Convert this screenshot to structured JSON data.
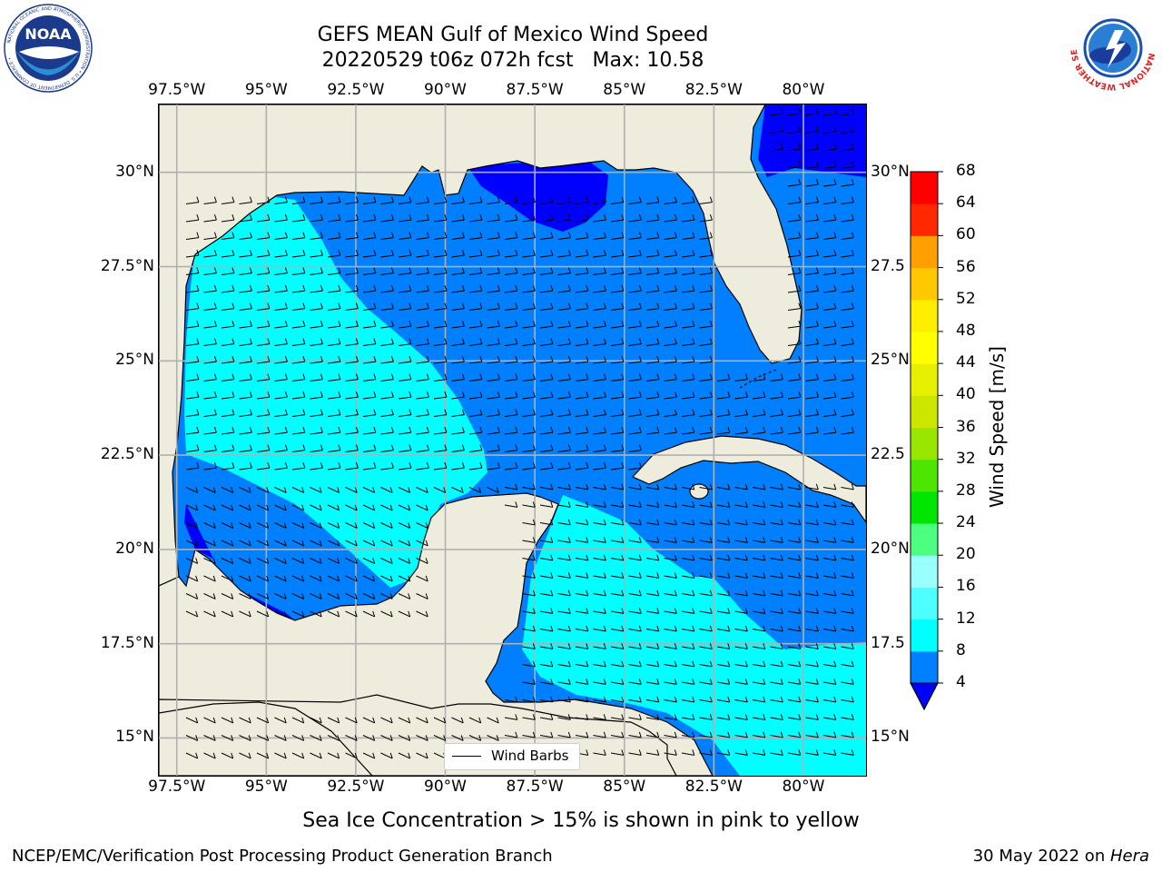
{
  "title": {
    "line1": "GEFS MEAN Gulf of Mexico Wind Speed",
    "line2": "20220529 t06z 072h fcst   Max: 10.58"
  },
  "map": {
    "extent": {
      "lon_min": -98.0,
      "lon_max": -78.25,
      "lat_min": 14.0,
      "lat_max": 31.8
    },
    "lon_ticks": [
      "97.5°W",
      "95°W",
      "92.5°W",
      "90°W",
      "87.5°W",
      "85°W",
      "82.5°W",
      "80°W"
    ],
    "lat_ticks_left": [
      "30°N",
      "27.5°N",
      "25°N",
      "22.5°N",
      "20°N",
      "17.5°N",
      "15°N"
    ],
    "lat_ticks_right": [
      "30°N",
      "27.5",
      "25°N",
      "22.5",
      "20°N",
      "17.5",
      "15°N"
    ],
    "grid": true,
    "land_color": "#eeecdc",
    "legend_label": "Wind Barbs"
  },
  "colorbar": {
    "label": "Wind Speed [m/s]",
    "ticks": [
      "68",
      "64",
      "60",
      "56",
      "52",
      "48",
      "44",
      "40",
      "36",
      "32",
      "28",
      "24",
      "20",
      "16",
      "12",
      "8",
      "4"
    ],
    "colors_low_to_high": [
      "#0080ff",
      "#00ffff",
      "#4dffff",
      "#99ffff",
      "#4cff80",
      "#00e600",
      "#4ce600",
      "#99e600",
      "#cce600",
      "#e6f000",
      "#ffff00",
      "#ffee00",
      "#ffc800",
      "#ffa000",
      "#ff8000",
      "#ff5000",
      "#ff2800",
      "#ff0000"
    ],
    "under_color": "#0000ff"
  },
  "chart_data": {
    "type": "heatmap",
    "title": "GEFS MEAN Gulf of Mexico Wind Speed",
    "subtitle": "20220529 t06z 072h fcst   Max: 10.58",
    "colorbar_label": "Wind Speed [m/s]",
    "levels": [
      4,
      8,
      12,
      16,
      20,
      24,
      28,
      32,
      36,
      40,
      44,
      48,
      52,
      56,
      60,
      64,
      68
    ],
    "max_value": 10.58,
    "regions": [
      {
        "area": "western Gulf core",
        "range": "8-12"
      },
      {
        "area": "central/eastern Gulf",
        "range": "4-8"
      },
      {
        "area": "northeastern Gulf near panhandle",
        "range": "<4"
      },
      {
        "area": "Caribbean west of Jamaica",
        "range": "8-12"
      },
      {
        "area": "Atlantic off Florida north",
        "range": "<4"
      }
    ]
  },
  "caption": "Sea Ice Concentration > 15% is shown in pink to yellow",
  "footer": {
    "left": "NCEP/EMC/Verification Post Processing Product Generation Branch",
    "right_date": "30 May 2022 on ",
    "right_machine": "Hera"
  },
  "logos": {
    "noaa": "NOAA",
    "noaa_ring": "NATIONAL OCEANIC AND ATMOSPHERIC ADMINISTRATION • U.S. DEPARTMENT OF COMMERCE •",
    "nws_ring": "NATIONAL WEATHER SERVICE"
  }
}
